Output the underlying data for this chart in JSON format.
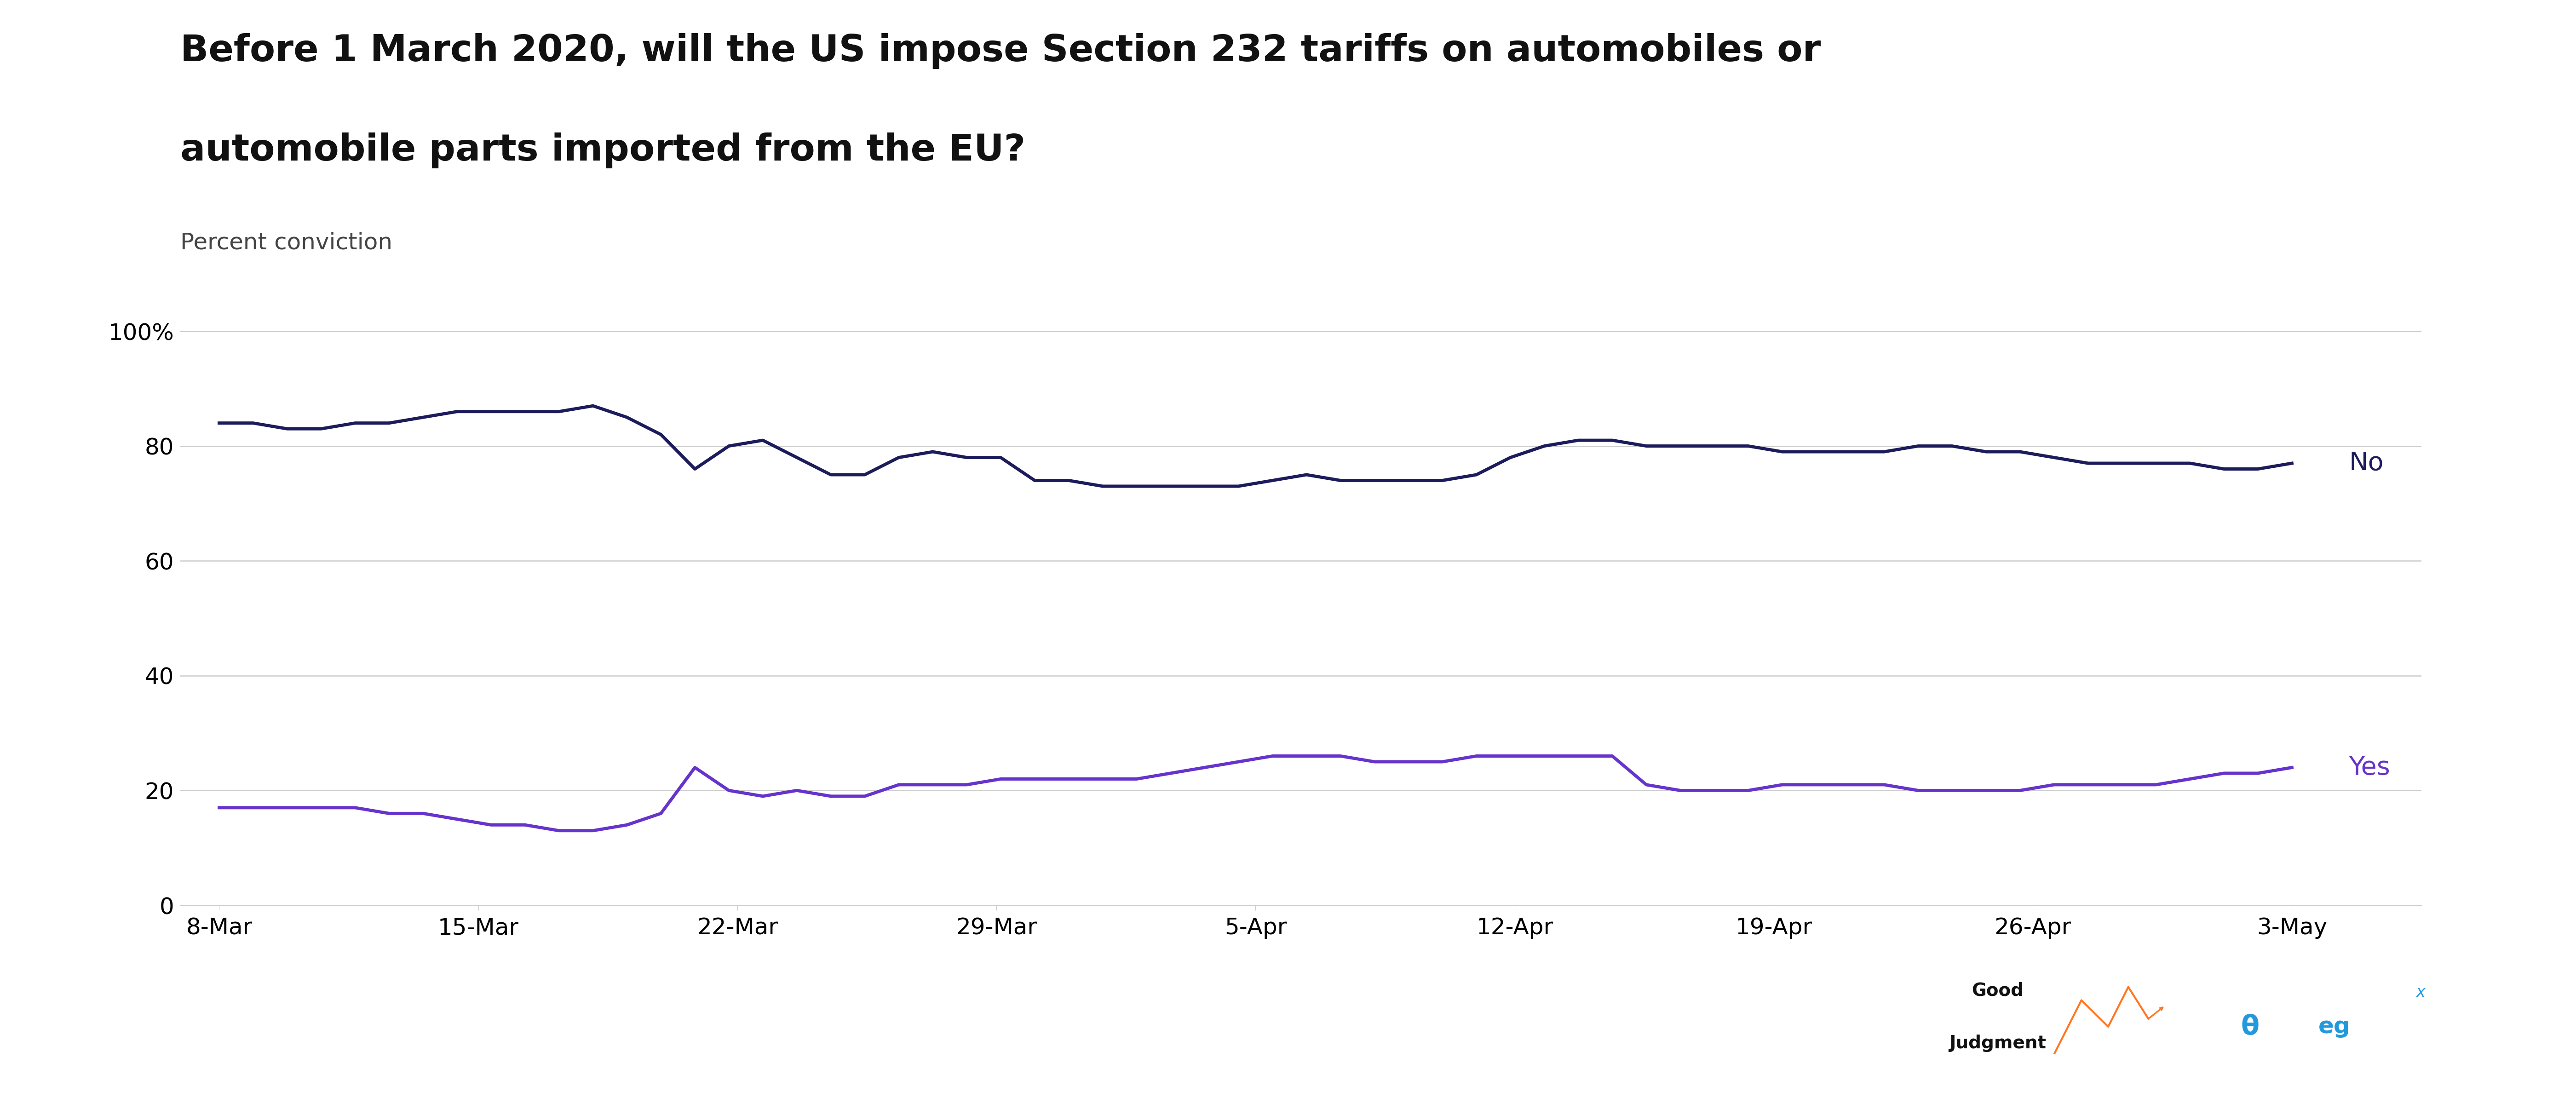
{
  "title_line1": "Before 1 March 2020, will the US impose Section 232 tariffs on automobiles or",
  "title_line2": "automobile parts imported from the EU?",
  "subtitle": "Percent conviction",
  "no_color": "#1c1c5c",
  "yes_color": "#6633cc",
  "background_color": "#ffffff",
  "grid_color": "#cccccc",
  "ylim": [
    0,
    100
  ],
  "yticks": [
    0,
    20,
    40,
    60,
    80,
    100
  ],
  "ytick_labels": [
    "0",
    "20",
    "40",
    "60",
    "80",
    "100%"
  ],
  "x_labels": [
    "8-Mar",
    "15-Mar",
    "22-Mar",
    "29-Mar",
    "5-Apr",
    "12-Apr",
    "19-Apr",
    "26-Apr",
    "3-May"
  ],
  "no_values": [
    84,
    84,
    83,
    83,
    84,
    84,
    85,
    86,
    86,
    86,
    86,
    87,
    85,
    82,
    76,
    80,
    81,
    78,
    75,
    75,
    78,
    79,
    78,
    78,
    74,
    74,
    73,
    73,
    73,
    73,
    73,
    74,
    75,
    74,
    74,
    74,
    74,
    75,
    78,
    80,
    81,
    81,
    80,
    80,
    80,
    80,
    79,
    79,
    79,
    79,
    80,
    80,
    79,
    79,
    78,
    77,
    77,
    77,
    77,
    76,
    76,
    77
  ],
  "yes_values": [
    17,
    17,
    17,
    17,
    17,
    16,
    16,
    15,
    14,
    14,
    13,
    13,
    14,
    16,
    24,
    20,
    19,
    20,
    19,
    19,
    21,
    21,
    21,
    22,
    22,
    22,
    22,
    22,
    23,
    24,
    25,
    26,
    26,
    26,
    25,
    25,
    25,
    26,
    26,
    26,
    26,
    26,
    21,
    20,
    20,
    20,
    21,
    21,
    21,
    21,
    20,
    20,
    20,
    20,
    21,
    21,
    21,
    21,
    22,
    23,
    23,
    24
  ],
  "line_width": 5,
  "title_fontsize": 58,
  "subtitle_fontsize": 36,
  "tick_fontsize": 36,
  "label_fontsize": 40,
  "figsize": [
    56,
    24
  ]
}
